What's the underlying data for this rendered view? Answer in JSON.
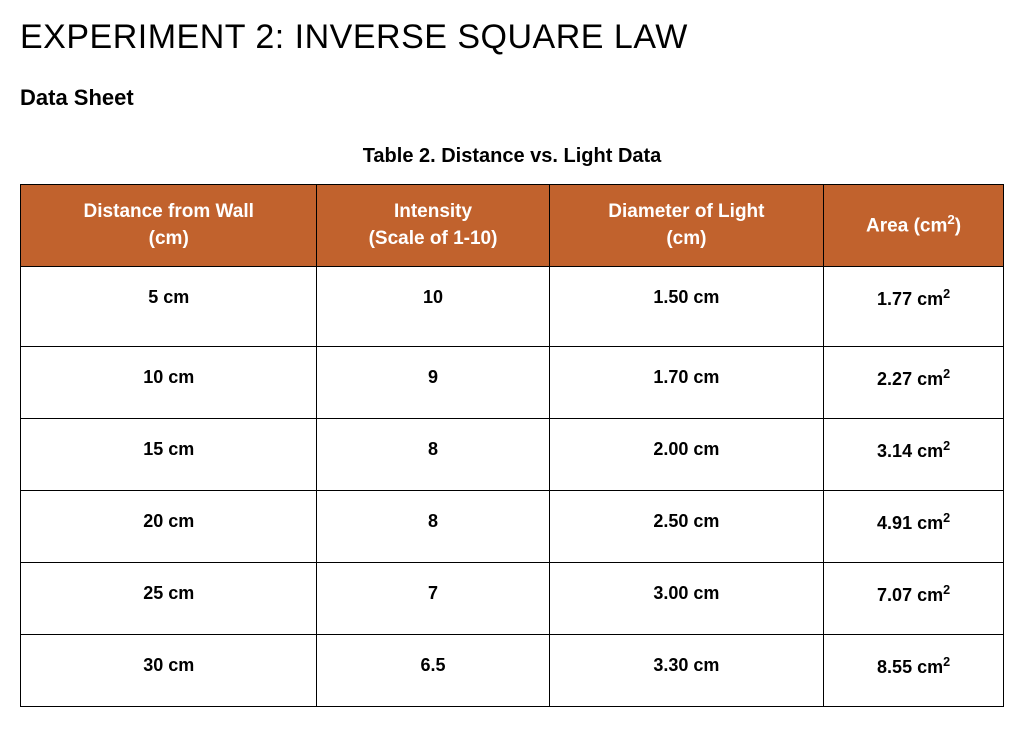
{
  "doc": {
    "title": "EXPERIMENT 2: INVERSE SQUARE LAW",
    "section": "Data Sheet",
    "table_caption": "Table 2. Distance vs. Light Data"
  },
  "table": {
    "header_bg": "#c1622d",
    "header_fg": "#ffffff",
    "border_color": "#000000",
    "columns": [
      {
        "line1": "Distance from Wall",
        "line2": "(cm)"
      },
      {
        "line1": "Intensity",
        "line2": "(Scale of 1-10)"
      },
      {
        "line1": "Diameter of Light",
        "line2": "(cm)"
      },
      {
        "line1": "Area (cm",
        "sup": "2",
        "line1_after": ")"
      }
    ],
    "rows": [
      {
        "distance": "5 cm",
        "intensity": "10",
        "diameter": "1.50 cm",
        "area_val": "1.77 cm",
        "area_sup": "2"
      },
      {
        "distance": "10 cm",
        "intensity": "9",
        "diameter": "1.70 cm",
        "area_val": "2.27 cm",
        "area_sup": "2"
      },
      {
        "distance": "15 cm",
        "intensity": "8",
        "diameter": "2.00 cm",
        "area_val": "3.14 cm",
        "area_sup": "2"
      },
      {
        "distance": "20 cm",
        "intensity": "8",
        "diameter": "2.50 cm",
        "area_val": "4.91 cm",
        "area_sup": "2"
      },
      {
        "distance": "25 cm",
        "intensity": "7",
        "diameter": "3.00 cm",
        "area_val": "7.07 cm",
        "area_sup": "2"
      },
      {
        "distance": "30 cm",
        "intensity": "6.5",
        "diameter": "3.30 cm",
        "area_val": "8.55 cm",
        "area_sup": "2"
      }
    ]
  }
}
